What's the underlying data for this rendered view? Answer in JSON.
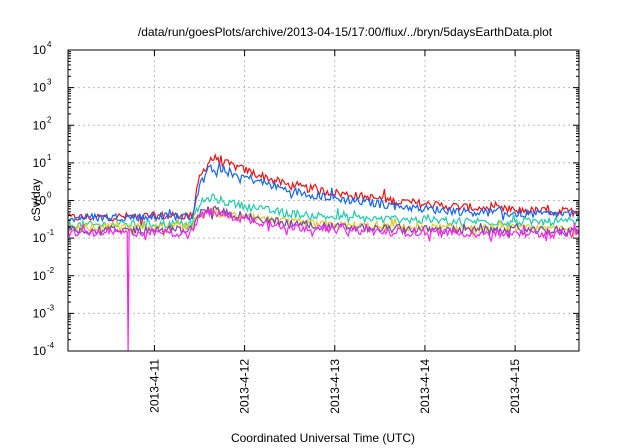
{
  "chart_data": {
    "type": "line",
    "title": "/data/run/goesPlots/archive/2013-04-15/17:00/flux/../bryn/5daysEarthData.plot",
    "xlabel": "Coordinated Universal Time (UTC)",
    "ylabel": "cSv/day",
    "yscale": "log",
    "grid": true,
    "xlim": [
      "2013-04-10T01:00",
      "2013-04-15T17:00"
    ],
    "ylim": [
      0.0001,
      10000
    ],
    "x_ticks": [
      "2013-4-11",
      "2013-4-12",
      "2013-4-13",
      "2013-4-14",
      "2013-4-15"
    ],
    "y_ticks": [
      {
        "base": "10",
        "exp": "4"
      },
      {
        "base": "10",
        "exp": "3"
      },
      {
        "base": "10",
        "exp": "2"
      },
      {
        "base": "10",
        "exp": "1"
      },
      {
        "base": "10",
        "exp": "0"
      },
      {
        "base": "10",
        "exp": "-1"
      },
      {
        "base": "10",
        "exp": "-2"
      },
      {
        "base": "10",
        "exp": "-3"
      },
      {
        "base": "10",
        "exp": "-4"
      }
    ],
    "series": [
      {
        "color": "#ee1111",
        "x": [
          "2013-04-10T01:00",
          "2013-04-11T10:00",
          "2013-04-11T12:00",
          "2013-04-11T15:00",
          "2013-04-11T20:00",
          "2013-04-12T06:00",
          "2013-04-12T12:00",
          "2013-04-13T00:00",
          "2013-04-13T12:00",
          "2013-04-14T00:00",
          "2013-04-14T12:00",
          "2013-04-15T00:00",
          "2013-04-15T17:00"
        ],
        "y": [
          0.35,
          0.4,
          4,
          13,
          9,
          4,
          2.5,
          1.6,
          1.1,
          0.8,
          0.65,
          0.55,
          0.5
        ]
      },
      {
        "color": "#1166ff",
        "x": [
          "2013-04-10T01:00",
          "2013-04-11T10:00",
          "2013-04-11T12:00",
          "2013-04-11T15:00",
          "2013-04-11T20:00",
          "2013-04-12T06:00",
          "2013-04-12T12:00",
          "2013-04-13T00:00",
          "2013-04-13T12:00",
          "2013-04-14T00:00",
          "2013-04-14T12:00",
          "2013-04-15T00:00",
          "2013-04-15T17:00"
        ],
        "y": [
          0.35,
          0.38,
          2.5,
          7.5,
          5.5,
          2.8,
          1.8,
          1.15,
          0.8,
          0.6,
          0.5,
          0.45,
          0.42
        ]
      },
      {
        "color": "#22ccaa",
        "x": [
          "2013-04-10T01:00",
          "2013-04-11T10:00",
          "2013-04-11T12:00",
          "2013-04-11T15:00",
          "2013-04-11T20:00",
          "2013-04-12T06:00",
          "2013-04-12T12:00",
          "2013-04-13T00:00",
          "2013-04-13T12:00",
          "2013-04-14T00:00",
          "2013-04-14T12:00",
          "2013-04-15T00:00",
          "2013-04-15T17:00"
        ],
        "y": [
          0.22,
          0.24,
          0.8,
          1.2,
          0.85,
          0.55,
          0.45,
          0.36,
          0.32,
          0.3,
          0.28,
          0.27,
          0.27
        ]
      },
      {
        "color": "#ddcc22",
        "x": [
          "2013-04-10T01:00",
          "2013-04-11T10:00",
          "2013-04-11T12:00",
          "2013-04-11T15:00",
          "2013-04-11T20:00",
          "2013-04-12T06:00",
          "2013-04-12T12:00",
          "2013-04-13T00:00",
          "2013-04-13T12:00",
          "2013-04-14T00:00",
          "2013-04-14T12:00",
          "2013-04-15T00:00",
          "2013-04-15T17:00"
        ],
        "y": [
          0.19,
          0.2,
          0.42,
          0.5,
          0.4,
          0.3,
          0.26,
          0.22,
          0.2,
          0.19,
          0.18,
          0.18,
          0.17
        ]
      },
      {
        "color": "#7744aa",
        "x": [
          "2013-04-10T01:00",
          "2013-04-11T10:00",
          "2013-04-11T12:00",
          "2013-04-11T15:00",
          "2013-04-11T20:00",
          "2013-04-12T06:00",
          "2013-04-12T12:00",
          "2013-04-13T00:00",
          "2013-04-13T12:00",
          "2013-04-14T00:00",
          "2013-04-14T12:00",
          "2013-04-15T00:00",
          "2013-04-15T17:00"
        ],
        "y": [
          0.16,
          0.17,
          0.45,
          0.6,
          0.45,
          0.3,
          0.25,
          0.2,
          0.18,
          0.17,
          0.16,
          0.16,
          0.15
        ]
      },
      {
        "color": "#ff22ee",
        "x": [
          "2013-04-10T01:00",
          "2013-04-10T16:45",
          "2013-04-10T17:00",
          "2013-04-10T17:15",
          "2013-04-11T10:00",
          "2013-04-11T12:00",
          "2013-04-11T15:00",
          "2013-04-11T20:00",
          "2013-04-12T06:00",
          "2013-04-12T12:00",
          "2013-04-13T00:00",
          "2013-04-13T12:00",
          "2013-04-14T00:00",
          "2013-04-14T12:00",
          "2013-04-15T00:00",
          "2013-04-15T17:00"
        ],
        "y": [
          0.14,
          0.14,
          0.0001,
          0.14,
          0.14,
          0.38,
          0.5,
          0.38,
          0.25,
          0.2,
          0.17,
          0.15,
          0.14,
          0.14,
          0.13,
          0.13
        ]
      }
    ]
  }
}
